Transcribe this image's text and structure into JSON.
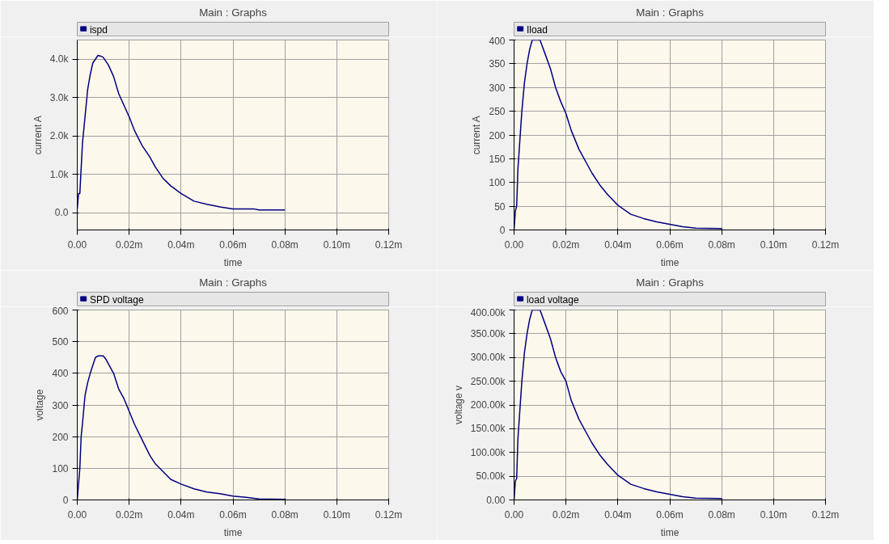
{
  "chart_data": [
    {
      "type": "line",
      "title": "Main : Graphs",
      "xlabel": "time",
      "ylabel": "current A",
      "legend": "top left",
      "grid": true,
      "line_style": "solid",
      "xlim": [
        0,
        0.12
      ],
      "xticks": [
        {
          "value": 0,
          "label": "0.00"
        },
        {
          "value": 0.02,
          "label": "0.02m"
        },
        {
          "value": 0.04,
          "label": "0.04m"
        },
        {
          "value": 0.06,
          "label": "0.06m"
        },
        {
          "value": 0.08,
          "label": "0.08m"
        },
        {
          "value": 0.1,
          "label": "0.10m"
        },
        {
          "value": 0.12,
          "label": "0.12m"
        }
      ],
      "ylim": [
        -450,
        4500
      ],
      "yticks": [
        {
          "value": 0,
          "label": "0.0"
        },
        {
          "value": 1000,
          "label": "1.0k"
        },
        {
          "value": 2000,
          "label": "2.0k"
        },
        {
          "value": 3000,
          "label": "3.0k"
        },
        {
          "value": 4000,
          "label": "4.0k"
        }
      ],
      "x": [
        0,
        0.0005,
        0.001,
        0.002,
        0.003,
        0.004,
        0.005,
        0.006,
        0.008,
        0.009,
        0.01,
        0.012,
        0.014,
        0.016,
        0.018,
        0.02,
        0.022,
        0.025,
        0.028,
        0.03,
        0.033,
        0.036,
        0.04,
        0.045,
        0.05,
        0.055,
        0.06,
        0.068,
        0.07,
        0.08
      ],
      "series": [
        {
          "name": "ispd",
          "color": "#000080",
          "values": [
            100,
            500,
            500,
            1800,
            2500,
            3200,
            3600,
            3900,
            4100,
            4080,
            4050,
            3850,
            3550,
            3100,
            2800,
            2500,
            2150,
            1750,
            1450,
            1200,
            900,
            700,
            500,
            300,
            220,
            150,
            100,
            100,
            70,
            70
          ]
        }
      ]
    },
    {
      "type": "line",
      "title": "Main : Graphs",
      "xlabel": "time",
      "ylabel": "current A",
      "legend": "top left",
      "grid": true,
      "line_style": "solid",
      "xlim": [
        0,
        0.12
      ],
      "xticks": [
        {
          "value": 0,
          "label": "0.00"
        },
        {
          "value": 0.02,
          "label": "0.02m"
        },
        {
          "value": 0.04,
          "label": "0.04m"
        },
        {
          "value": 0.06,
          "label": "0.06m"
        },
        {
          "value": 0.08,
          "label": "0.08m"
        },
        {
          "value": 0.1,
          "label": "0.10m"
        },
        {
          "value": 0.12,
          "label": "0.12m"
        }
      ],
      "ylim": [
        0,
        400
      ],
      "yticks": [
        0,
        50,
        100,
        150,
        200,
        250,
        300,
        350,
        400
      ],
      "x": [
        0,
        0.0005,
        0.001,
        0.0015,
        0.002,
        0.003,
        0.004,
        0.005,
        0.006,
        0.007,
        0.01,
        0.012,
        0.014,
        0.016,
        0.018,
        0.02,
        0.022,
        0.025,
        0.028,
        0.03,
        0.033,
        0.036,
        0.04,
        0.045,
        0.05,
        0.055,
        0.06,
        0.065,
        0.07,
        0.08
      ],
      "series": [
        {
          "name": "Iload",
          "color": "#000080",
          "values": [
            0,
            40,
            50,
            130,
            170,
            250,
            310,
            350,
            380,
            400,
            400,
            370,
            340,
            300,
            270,
            245,
            210,
            170,
            140,
            120,
            95,
            75,
            52,
            33,
            24,
            17,
            12,
            7,
            4,
            3
          ]
        }
      ]
    },
    {
      "type": "line",
      "title": "Main : Graphs",
      "xlabel": "time",
      "ylabel": "voltage",
      "legend": "top left",
      "grid": true,
      "line_style": "solid",
      "xlim": [
        0,
        0.12
      ],
      "xticks": [
        {
          "value": 0,
          "label": "0.00"
        },
        {
          "value": 0.02,
          "label": "0.02m"
        },
        {
          "value": 0.04,
          "label": "0.04m"
        },
        {
          "value": 0.06,
          "label": "0.06m"
        },
        {
          "value": 0.08,
          "label": "0.08m"
        },
        {
          "value": 0.1,
          "label": "0.10m"
        },
        {
          "value": 0.12,
          "label": "0.12m"
        }
      ],
      "ylim": [
        0,
        600
      ],
      "yticks": [
        0,
        100,
        200,
        300,
        400,
        500,
        600
      ],
      "x": [
        0,
        0.0005,
        0.001,
        0.0015,
        0.002,
        0.003,
        0.004,
        0.005,
        0.006,
        0.007,
        0.008,
        0.01,
        0.011,
        0.012,
        0.014,
        0.016,
        0.018,
        0.02,
        0.022,
        0.025,
        0.028,
        0.03,
        0.033,
        0.036,
        0.04,
        0.045,
        0.05,
        0.055,
        0.06,
        0.065,
        0.07,
        0.08
      ],
      "series": [
        {
          "name": "SPD voltage",
          "color": "#000080",
          "values": [
            0,
            50,
            100,
            200,
            240,
            330,
            370,
            400,
            425,
            450,
            455,
            455,
            445,
            430,
            400,
            350,
            320,
            280,
            240,
            190,
            140,
            115,
            90,
            65,
            50,
            35,
            25,
            20,
            12,
            8,
            3,
            2
          ]
        }
      ]
    },
    {
      "type": "line",
      "title": "Main : Graphs",
      "xlabel": "time",
      "ylabel": "voltage v",
      "legend": "top left",
      "grid": true,
      "line_style": "solid",
      "xlim": [
        0,
        0.12
      ],
      "xticks": [
        {
          "value": 0,
          "label": "0.00"
        },
        {
          "value": 0.02,
          "label": "0.02m"
        },
        {
          "value": 0.04,
          "label": "0.04m"
        },
        {
          "value": 0.06,
          "label": "0.06m"
        },
        {
          "value": 0.08,
          "label": "0.08m"
        },
        {
          "value": 0.1,
          "label": "0.10m"
        },
        {
          "value": 0.12,
          "label": "0.12m"
        }
      ],
      "ylim": [
        0,
        400000
      ],
      "yticks": [
        {
          "value": 0,
          "label": "0.00"
        },
        {
          "value": 50000,
          "label": "50.00k"
        },
        {
          "value": 100000,
          "label": "100.00k"
        },
        {
          "value": 150000,
          "label": "150.00k"
        },
        {
          "value": 200000,
          "label": "200.00k"
        },
        {
          "value": 250000,
          "label": "250.00k"
        },
        {
          "value": 300000,
          "label": "300.00k"
        },
        {
          "value": 350000,
          "label": "350.00k"
        },
        {
          "value": 400000,
          "label": "400.00k"
        }
      ],
      "x": [
        0,
        0.0005,
        0.001,
        0.0015,
        0.002,
        0.003,
        0.004,
        0.005,
        0.006,
        0.007,
        0.01,
        0.012,
        0.014,
        0.016,
        0.018,
        0.02,
        0.022,
        0.025,
        0.028,
        0.03,
        0.033,
        0.036,
        0.04,
        0.045,
        0.05,
        0.055,
        0.06,
        0.065,
        0.07,
        0.08
      ],
      "series": [
        {
          "name": "load voltage",
          "color": "#000080",
          "values": [
            0,
            40000,
            45000,
            130000,
            170000,
            250000,
            310000,
            350000,
            380000,
            400000,
            400000,
            370000,
            340000,
            300000,
            270000,
            250000,
            210000,
            170000,
            140000,
            120000,
            95000,
            75000,
            52000,
            33000,
            24000,
            17000,
            12000,
            7000,
            4000,
            3000
          ]
        }
      ]
    }
  ]
}
